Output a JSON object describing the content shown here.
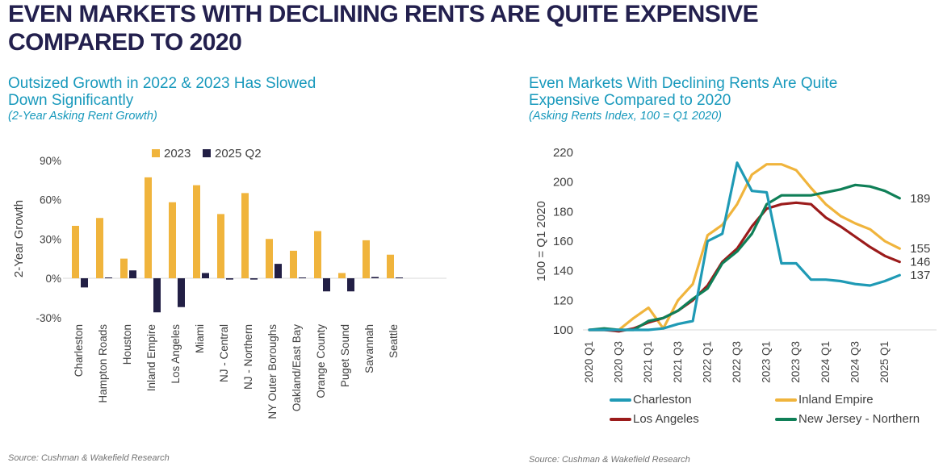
{
  "page": {
    "title_line1": "EVEN MARKETS WITH DECLINING RENTS ARE QUITE EXPENSIVE",
    "title_line2": "COMPARED TO 2020"
  },
  "left_panel": {
    "heading_line1": "Outsized Growth in 2022 & 2023 Has Slowed",
    "heading_line2": "Down Significantly",
    "subtitle": "(2-Year Asking Rent Growth)",
    "source": "Source: Cushman & Wakefield Research"
  },
  "right_panel": {
    "heading_line1": "Even Markets With Declining Rents Are Quite",
    "heading_line2": "Expensive Compared to 2020",
    "subtitle": "(Asking Rents Index, 100 = Q1 2020)",
    "source": "Source: Cushman & Wakefield Research"
  },
  "colors": {
    "title_navy": "#23204E",
    "heading_teal": "#1899BC",
    "axis_text": "#404040",
    "baseline_gray": "#ECECEC",
    "source_gray": "#737373"
  },
  "chart_data": [
    {
      "type": "bar",
      "title": "Outsized Growth in 2022 & 2023 Has Slowed Down Significantly",
      "subtitle": "(2-Year Asking Rent Growth)",
      "ylabel": "2-Year Growth",
      "ylim": [
        -30,
        90
      ],
      "yticks": [
        90,
        60,
        30,
        0,
        -30
      ],
      "ytick_suffix": "%",
      "grid": false,
      "legend_position": "top",
      "categories": [
        "Charleston",
        "Hampton Roads",
        "Houston",
        "Inland Empire",
        "Los Angeles",
        "Miami",
        "NJ - Central",
        "NJ - Northern",
        "NY Outer Boroughs",
        "Oakland/East Bay",
        "Orange County",
        "Puget Sound",
        "Savannah",
        "Seattle"
      ],
      "series": [
        {
          "name": "2023",
          "color": "#F0B43C",
          "values": [
            40,
            46,
            15,
            77,
            58,
            71,
            49,
            65,
            30,
            21,
            36,
            4,
            29,
            18
          ]
        },
        {
          "name": "2025 Q2",
          "color": "#221F45",
          "values": [
            -7,
            0,
            6,
            -26,
            -22,
            4,
            -1,
            -1,
            11,
            0,
            -10,
            -10,
            1,
            0
          ]
        }
      ]
    },
    {
      "type": "line",
      "title": "Even Markets With Declining Rents Are Quite Expensive Compared to 2020",
      "subtitle": "(Asking Rents Index, 100 = Q1 2020)",
      "ylabel": "100 = Q1 2020",
      "ylim": [
        100,
        220
      ],
      "yticks": [
        220,
        200,
        180,
        160,
        140,
        120,
        100
      ],
      "grid": false,
      "legend_position": "bottom",
      "x": [
        "2020 Q1",
        "2020 Q2",
        "2020 Q3",
        "2020 Q4",
        "2021 Q1",
        "2021 Q2",
        "2021 Q3",
        "2021 Q4",
        "2022 Q1",
        "2022 Q2",
        "2022 Q3",
        "2022 Q4",
        "2023 Q1",
        "2023 Q2",
        "2023 Q3",
        "2023 Q4",
        "2024 Q1",
        "2024 Q2",
        "2024 Q3",
        "2024 Q4",
        "2025 Q1",
        "2025 Q2"
      ],
      "xticks_shown": [
        "2020 Q1",
        "2020 Q3",
        "2021 Q1",
        "2021 Q3",
        "2022 Q1",
        "2022 Q3",
        "2023 Q1",
        "2023 Q3",
        "2024 Q1",
        "2024 Q3",
        "2025 Q1"
      ],
      "series": [
        {
          "name": "Charleston",
          "color": "#1F9AB5",
          "end_label": 137,
          "values": [
            100,
            100,
            100,
            100,
            100,
            101,
            104,
            106,
            160,
            165,
            213,
            194,
            193,
            145,
            145,
            134,
            134,
            133,
            131,
            130,
            133,
            137
          ]
        },
        {
          "name": "Inland Empire",
          "color": "#F0B43C",
          "end_label": 155,
          "values": [
            100,
            100,
            100,
            108,
            115,
            101,
            120,
            131,
            164,
            171,
            185,
            205,
            212,
            212,
            208,
            196,
            185,
            177,
            172,
            168,
            160,
            155
          ]
        },
        {
          "name": "Los Angeles",
          "color": "#9B1B1B",
          "end_label": 146,
          "values": [
            100,
            100,
            99,
            101,
            105,
            108,
            113,
            120,
            130,
            146,
            155,
            170,
            182,
            185,
            186,
            185,
            176,
            170,
            163,
            156,
            150,
            146
          ]
        },
        {
          "name": "New Jersey - Northern",
          "color": "#0F7F57",
          "end_label": 189,
          "values": [
            100,
            101,
            100,
            100,
            106,
            108,
            113,
            121,
            128,
            145,
            153,
            165,
            185,
            191,
            191,
            191,
            193,
            195,
            198,
            197,
            194,
            189
          ]
        }
      ]
    }
  ]
}
